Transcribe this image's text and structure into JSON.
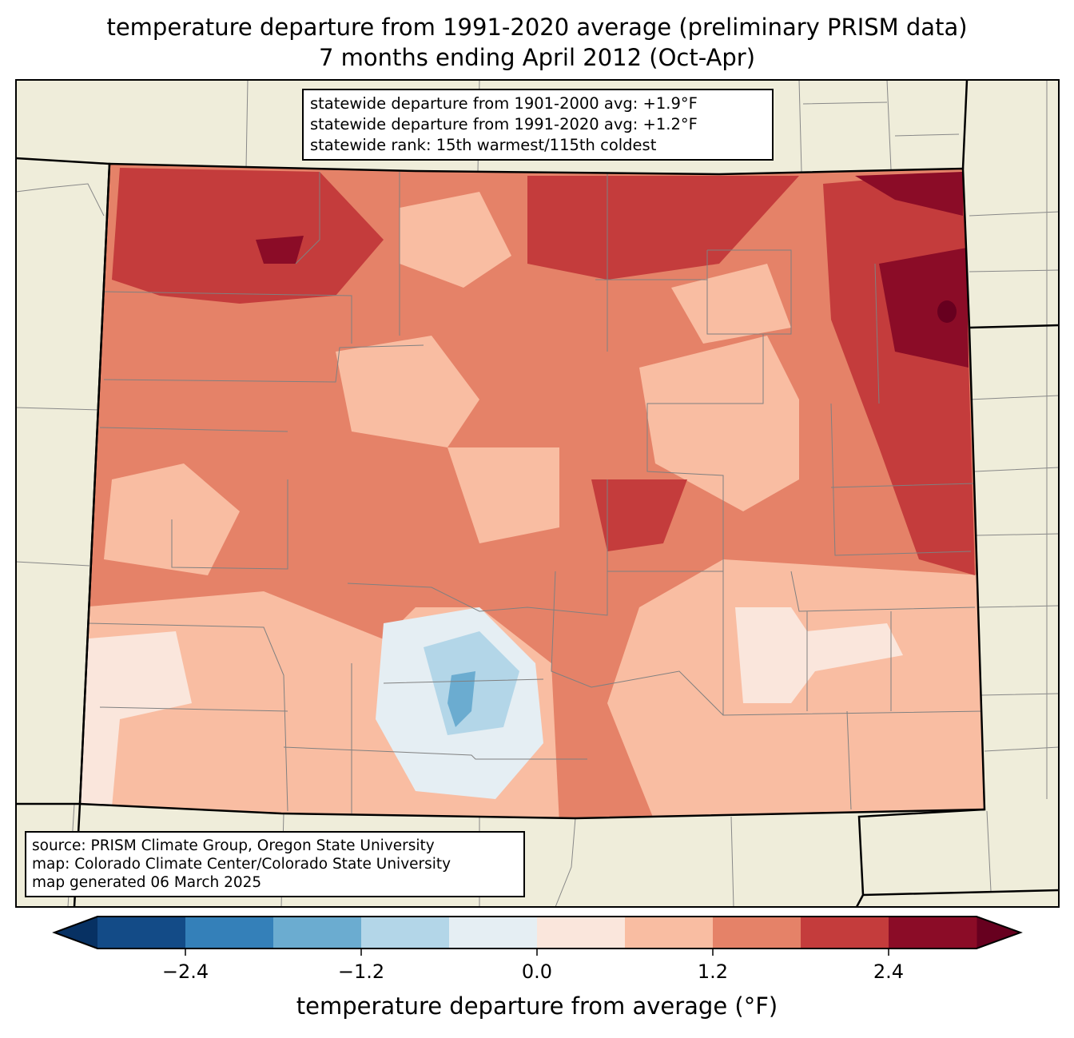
{
  "title": {
    "line1": "temperature departure from 1991-2020 average (preliminary PRISM data)",
    "line2": "7 months ending April 2012 (Oct-Apr)"
  },
  "stats": {
    "line1": "statewide departure from 1901-2000 avg: +1.9°F",
    "line2": "statewide departure from 1991-2020 avg: +1.2°F",
    "line3": "statewide rank: 15th warmest/115th coldest"
  },
  "source": {
    "line1": "source: PRISM Climate Group, Oregon State University",
    "line2": "map: Colorado Climate Center/Colorado State University",
    "line3": "map generated 06 March 2025"
  },
  "chart_data": {
    "type": "heatmap",
    "colorbar": {
      "label": "temperature departure from average (°F)",
      "levels": [
        -3.0,
        -2.4,
        -1.8,
        -1.2,
        -0.6,
        0.0,
        0.6,
        1.2,
        1.8,
        2.4,
        3.0
      ],
      "colors": [
        "#134b87",
        "#3480b9",
        "#6bacd0",
        "#b3d6e8",
        "#e5eef3",
        "#fae6dc",
        "#f9bda2",
        "#e58268",
        "#c43c3c",
        "#8b0c27"
      ],
      "extend_low_color": "#073163",
      "extend_high_color": "#67001f",
      "ticks": [
        -2.4,
        -1.2,
        0.0,
        1.2,
        2.4
      ],
      "tick_labels": [
        "−2.4",
        "−1.2",
        "0.0",
        "1.2",
        "2.4"
      ]
    }
  }
}
